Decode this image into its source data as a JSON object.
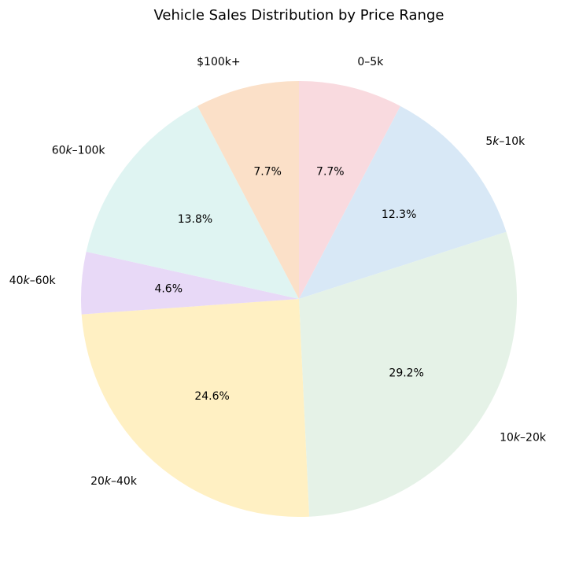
{
  "chart_data": {
    "type": "pie",
    "title": "Vehicle Sales Distribution by Price Range",
    "slices": [
      {
        "label": "0–5k",
        "label_parts": [
          [
            "0–5k",
            false
          ]
        ],
        "value": 7.7,
        "pct_label": "7.7%",
        "color": "#f9dadf"
      },
      {
        "label": "5k–10k",
        "label_parts": [
          [
            "5",
            false
          ],
          [
            "k",
            true
          ],
          [
            "–10k",
            false
          ]
        ],
        "value": 12.3,
        "pct_label": "12.3%",
        "color": "#d8e8f6"
      },
      {
        "label": "10k–20k",
        "label_parts": [
          [
            "10",
            false
          ],
          [
            "k",
            true
          ],
          [
            "–20k",
            false
          ]
        ],
        "value": 29.2,
        "pct_label": "29.2%",
        "color": "#e5f2e7"
      },
      {
        "label": "20k–40k",
        "label_parts": [
          [
            "20",
            false
          ],
          [
            "k",
            true
          ],
          [
            "–40k",
            false
          ]
        ],
        "value": 24.6,
        "pct_label": "24.6%",
        "color": "#fff0c3"
      },
      {
        "label": "40k–60k",
        "label_parts": [
          [
            "40",
            false
          ],
          [
            "k",
            true
          ],
          [
            "–60k",
            false
          ]
        ],
        "value": 4.6,
        "pct_label": "4.6%",
        "color": "#e8d9f7"
      },
      {
        "label": "60k–100k",
        "label_parts": [
          [
            "60",
            false
          ],
          [
            "k",
            true
          ],
          [
            "–100k",
            false
          ]
        ],
        "value": 13.8,
        "pct_label": "13.8%",
        "color": "#dff4f2"
      },
      {
        "label": "$100k+",
        "label_parts": [
          [
            "$100k+",
            false
          ]
        ],
        "value": 7.7,
        "pct_label": "7.7%",
        "color": "#fbe0c8"
      }
    ],
    "start_angle": 90,
    "direction": "clockwise"
  }
}
